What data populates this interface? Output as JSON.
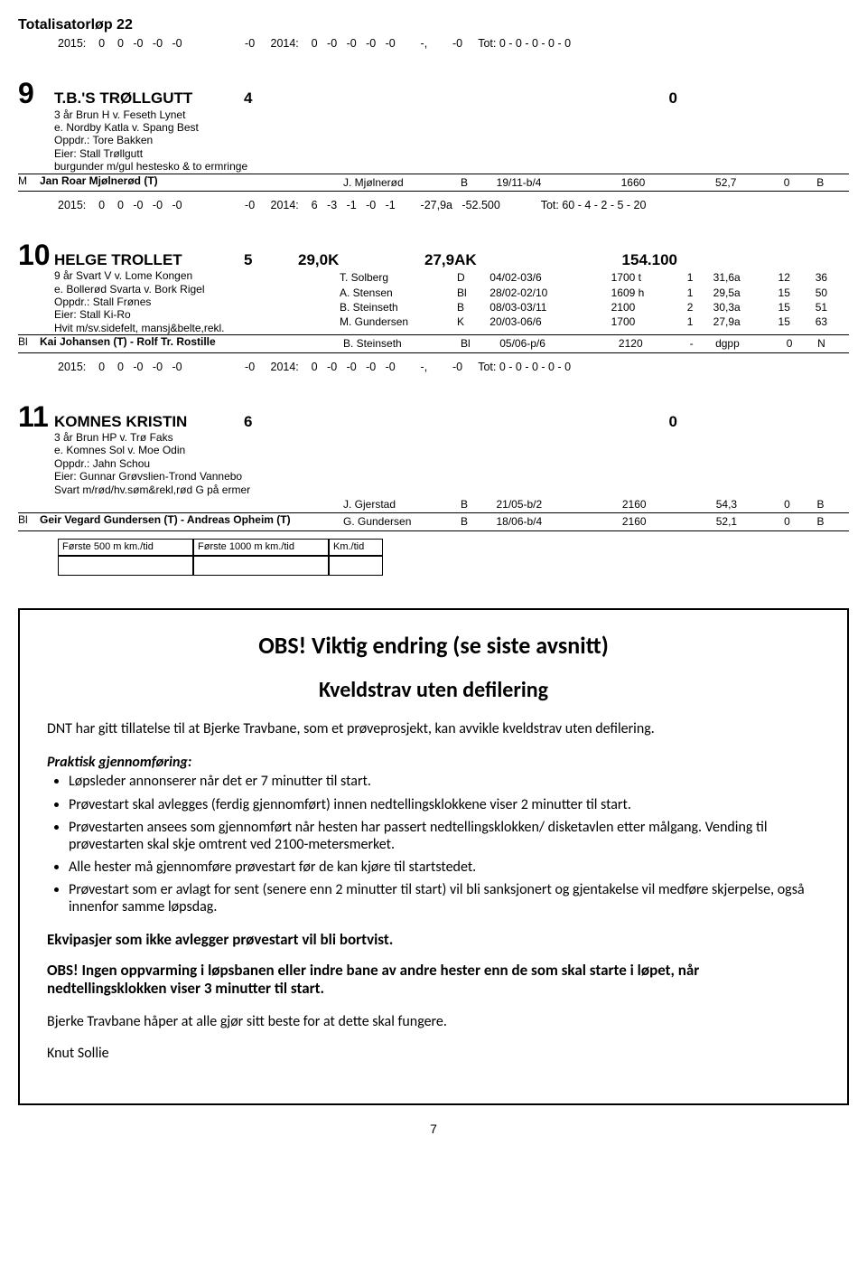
{
  "race_header": "Totalisatorløp 22",
  "entries": [
    {
      "num": "9",
      "stat_2015": "2015:    0    0   -0   -0   -0",
      "stat_gap": "-0",
      "stat_2014": "2014:    0   -0   -0   -0   -0",
      "stat_mid": "-,",
      "stat_r": "-0",
      "stat_tot": "Tot: 0 - 0 - 0 - 0 - 0",
      "name": "T.B.'S TRØLLGUTT",
      "col_b": "4",
      "col_c": "",
      "col_d": "",
      "col_e": "0",
      "lines": [
        "3 år Brun H v. Feseth Lynet",
        "e. Nordby Katla v. Spang Best",
        "Oppdr.: Tore Bakken",
        "Eier: Stall Trøllgutt",
        "burgunder m/gul hestesko & to ermringe"
      ],
      "bottom_letter": "M",
      "drivers": [
        {
          "left": "Jan Roar Mjølnerød (T)",
          "name": "J. Mjølnerød",
          "b": "B",
          "race": "19/11-b/4",
          "dist": "1660",
          "pl": "",
          "rec": "52,7",
          "o": "0",
          "t": "B"
        }
      ],
      "results": []
    },
    {
      "num": "10",
      "stat_2015": "2015:    0    0   -0   -0   -0",
      "stat_gap": "-0",
      "stat_2014": "2014:    6   -3   -1   -0   -1",
      "stat_mid": "-27,9a   -52.500",
      "stat_r": "",
      "stat_tot": "Tot: 60 - 4 - 2 - 5 - 20",
      "name": "HELGE TROLLET",
      "col_b": "5",
      "col_c": "29,0K",
      "col_d": "27,9AK",
      "col_e": "154.100",
      "lines": [
        "9 år Svart V v. Lome Kongen",
        "e. Bollerød Svarta v. Bork Rigel",
        "Oppdr.: Stall Frønes",
        "Eier: Stall Ki-Ro",
        "Hvit m/sv.sidefelt, mansj&belte,rekl."
      ],
      "bottom_letter": "Bl",
      "drivers": [
        {
          "left": "Kai Johansen (T) - Rolf Tr. Rostille",
          "name": "B. Steinseth",
          "b": "Bl",
          "race": "05/06-p/6",
          "dist": "2120",
          "pl": "-",
          "rec": "dgpp",
          "o": "0",
          "t": "N"
        }
      ],
      "results": [
        {
          "name": "T. Solberg",
          "b": "D",
          "race": "04/02-03/6",
          "dist": "1700 t",
          "pl": "1",
          "rec": "31,6a",
          "o": "12",
          "t": "36"
        },
        {
          "name": "A. Stensen",
          "b": "Bl",
          "race": "28/02-02/10",
          "dist": "1609 h",
          "pl": "1",
          "rec": "29,5a",
          "o": "15",
          "t": "50"
        },
        {
          "name": "B. Steinseth",
          "b": "B",
          "race": "08/03-03/11",
          "dist": "2100",
          "pl": "2",
          "rec": "30,3a",
          "o": "15",
          "t": "51"
        },
        {
          "name": "M. Gundersen",
          "b": "K",
          "race": "20/03-06/6",
          "dist": "1700",
          "pl": "1",
          "rec": "27,9a",
          "o": "15",
          "t": "63"
        }
      ]
    },
    {
      "num": "11",
      "stat_2015": "2015:    0    0   -0   -0   -0",
      "stat_gap": "-0",
      "stat_2014": "2014:    0   -0   -0   -0   -0",
      "stat_mid": "-,",
      "stat_r": "-0",
      "stat_tot": "Tot: 0 - 0 - 0 - 0 - 0",
      "name": "KOMNES KRISTIN",
      "col_b": "6",
      "col_c": "",
      "col_d": "",
      "col_e": "0",
      "lines": [
        "3 år Brun HP v. Trø Faks",
        "e. Komnes Sol v. Moe Odin",
        "Oppdr.: Jahn Schou",
        "Eier: Gunnar Grøvslien-Trond Vannebo",
        "Svart m/rød/hv.søm&rekl,rød G på ermer"
      ],
      "bottom_letter": "Bl",
      "drivers": [
        {
          "left": "",
          "name": "J. Gjerstad",
          "b": "B",
          "race": "21/05-b/2",
          "dist": "2160",
          "pl": "",
          "rec": "54,3",
          "o": "0",
          "t": "B"
        },
        {
          "left": "Geir Vegard Gundersen (T) - Andreas Opheim (T)",
          "name": "G. Gundersen",
          "b": "B",
          "race": "18/06-b/4",
          "dist": "2160",
          "pl": "",
          "rec": "52,1",
          "o": "0",
          "t": "B"
        }
      ],
      "results": []
    }
  ],
  "tri_boxes": [
    "Første 500 m km./tid",
    "Første 1000 m km./tid",
    "Km./tid"
  ],
  "info": {
    "h1": "OBS! Viktig endring (se siste avsnitt)",
    "h2": "Kveldstrav uten defilering",
    "lead": "DNT har gitt tillatelse til at Bjerke Travbane, som et prøveprosjekt, kan avvikle kveldstrav uten defilering.",
    "sub_h": "Praktisk gjennomføring:",
    "bullets": [
      "Løpsleder annonserer når det er 7 minutter til start.",
      "Prøvestart skal avlegges (ferdig gjennomført) innen nedtellingsklokkene viser 2 minutter til start.",
      "Prøvestarten ansees som gjennomført når hesten har passert nedtellingsklokken/ disketavlen etter målgang. Vending til prøvestarten skal skje omtrent ved 2100-metersmerket.",
      "Alle hester må gjennomføre prøvestart før de kan kjøre til startstedet.",
      "Prøvestart som er avlagt for sent (senere enn 2 minutter til start) vil bli sanksjonert og gjentakelse vil medføre skjerpelse, også innenfor samme løpsdag."
    ],
    "bold1": "Ekvipasjer som ikke avlegger prøvestart vil bli bortvist.",
    "bold2": "OBS! Ingen oppvarming i løpsbanen eller indre bane av andre hester enn de som skal starte i løpet, når nedtellingsklokken viser 3 minutter til start.",
    "p2": "Bjerke Travbane håper at alle gjør sitt beste for at dette skal fungere.",
    "sign": "Knut Sollie"
  },
  "page_number": "7"
}
